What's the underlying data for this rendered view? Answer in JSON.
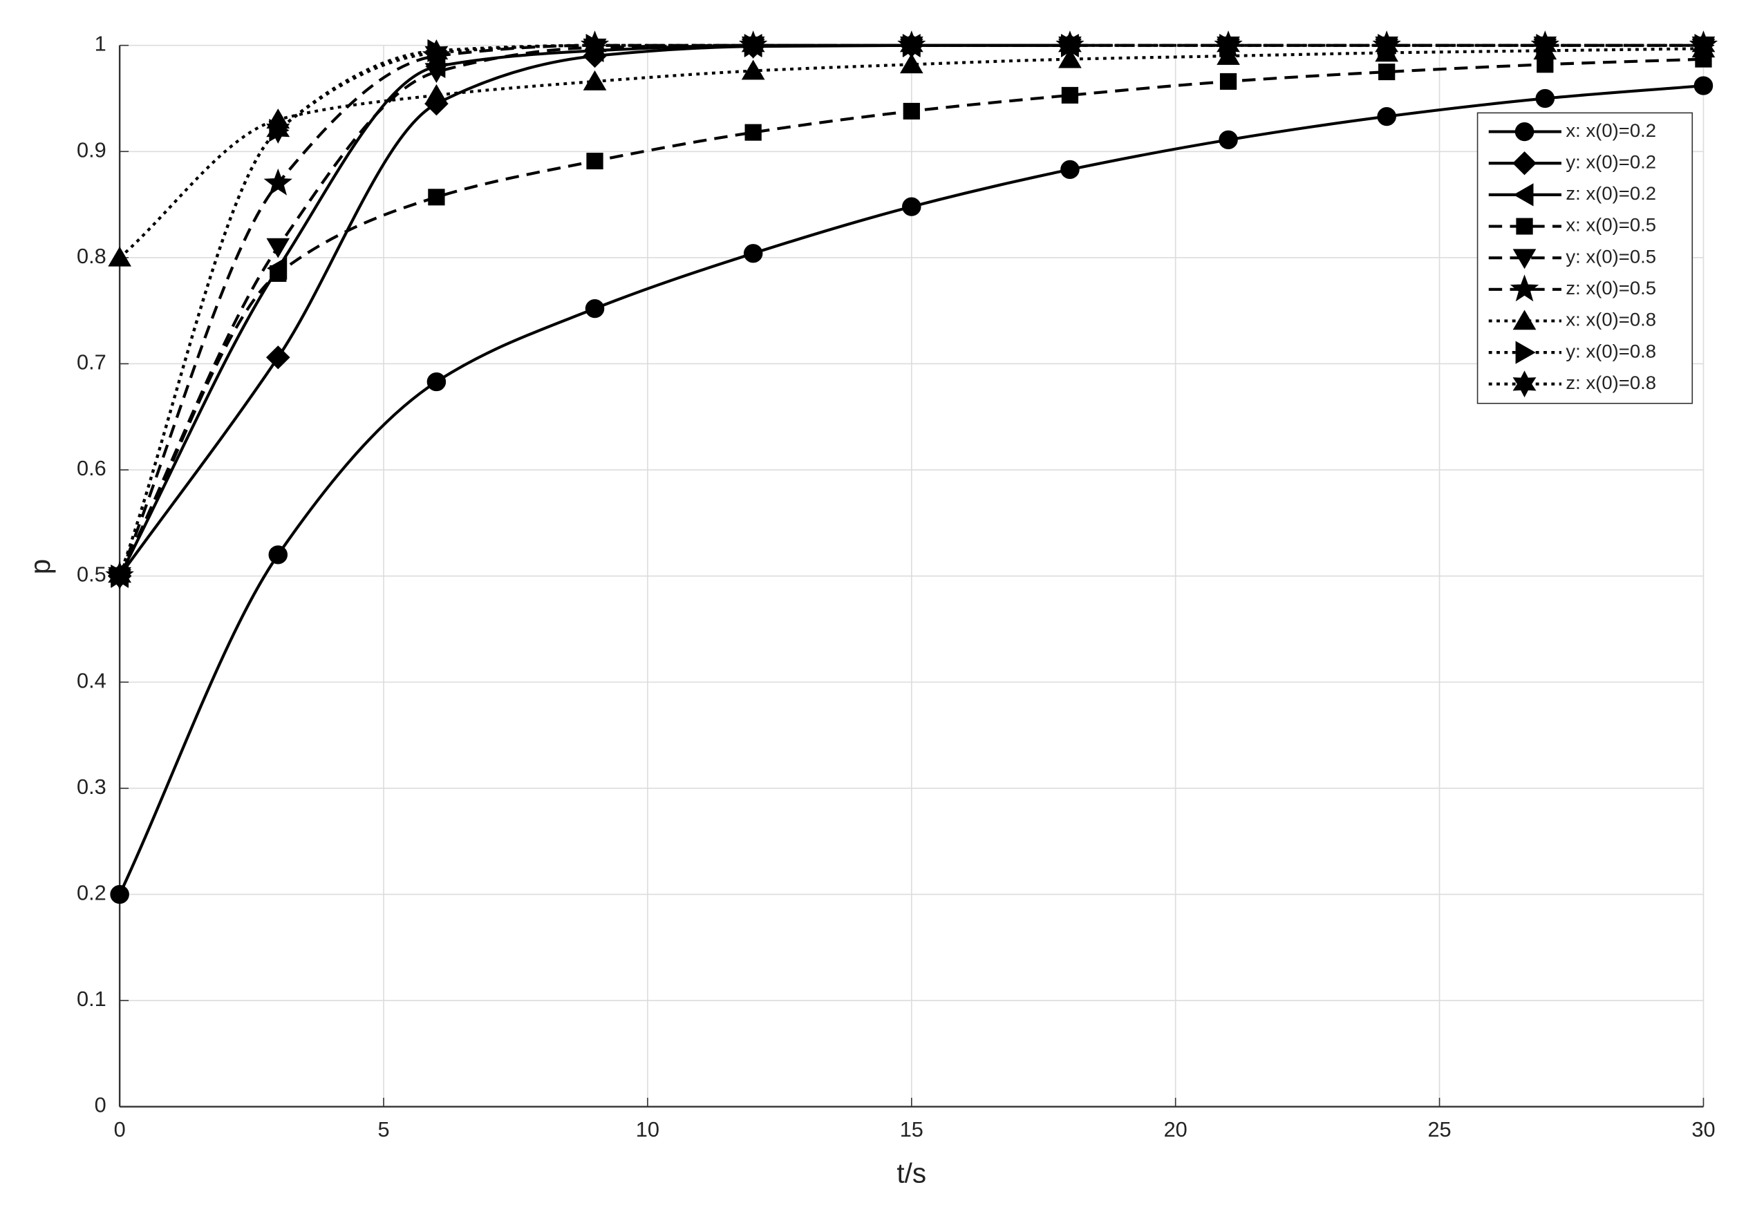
{
  "chart_data": {
    "type": "line",
    "x_label": "t/s",
    "y_label": "p",
    "x": [
      0,
      3,
      6,
      9,
      12,
      15,
      18,
      21,
      24,
      27,
      30
    ],
    "xlim": [
      0,
      30
    ],
    "xticks": [
      0,
      5,
      10,
      15,
      20,
      25,
      30
    ],
    "ylim": [
      0,
      1
    ],
    "yticks": [
      0,
      0.1,
      0.2,
      0.3,
      0.4,
      0.5,
      0.6,
      0.7,
      0.8,
      0.9,
      1
    ],
    "grid": true,
    "legend": "upper right",
    "series": [
      {
        "name": "x: x(0)=0.2",
        "color": "#000000",
        "dash": "solid",
        "marker": "circle",
        "values": [
          0.2,
          0.52,
          0.683,
          0.752,
          0.804,
          0.848,
          0.883,
          0.911,
          0.933,
          0.95,
          0.962
        ]
      },
      {
        "name": "y: x(0)=0.2",
        "color": "#000000",
        "dash": "solid",
        "marker": "diamond",
        "values": [
          0.5,
          0.706,
          0.945,
          0.99,
          0.999,
          1.0,
          1.0,
          null,
          null,
          null,
          null
        ]
      },
      {
        "name": "z: x(0)=0.2",
        "color": "#000000",
        "dash": "solid",
        "marker": "triangle-left",
        "values": [
          0.5,
          0.79,
          0.98,
          0.995,
          1.0,
          1.0,
          1.0,
          null,
          null,
          null,
          null
        ]
      },
      {
        "name": "x: x(0)=0.5",
        "color": "#000000",
        "dash": "dashed",
        "marker": "square",
        "values": [
          0.5,
          0.785,
          0.857,
          0.891,
          0.918,
          0.938,
          0.953,
          0.966,
          0.975,
          0.982,
          0.987
        ]
      },
      {
        "name": "y: x(0)=0.5",
        "color": "#000000",
        "dash": "dashed",
        "marker": "triangle-down",
        "values": [
          0.5,
          0.81,
          0.975,
          0.998,
          1.0,
          1.0,
          1.0,
          1.0,
          1.0,
          1.0,
          1.0
        ]
      },
      {
        "name": "z: x(0)=0.5",
        "color": "#000000",
        "dash": "dashed",
        "marker": "star",
        "values": [
          0.5,
          0.87,
          0.99,
          1.0,
          1.0,
          1.0,
          1.0,
          1.0,
          1.0,
          1.0,
          1.0
        ]
      },
      {
        "name": "x: x(0)=0.8",
        "color": "#000000",
        "dash": "dotted",
        "marker": "triangle-up",
        "values": [
          0.8,
          0.93,
          0.953,
          0.966,
          0.976,
          0.982,
          0.987,
          0.99,
          0.993,
          0.995,
          0.997
        ]
      },
      {
        "name": "y: x(0)=0.8",
        "color": "#000000",
        "dash": "dotted",
        "marker": "triangle-right",
        "values": [
          0.5,
          0.92,
          0.995,
          1.0,
          1.0,
          1.0,
          1.0,
          1.0,
          1.0,
          1.0,
          1.0
        ]
      },
      {
        "name": "z: x(0)=0.8",
        "color": "#000000",
        "dash": "dotted",
        "marker": "hexagram",
        "values": [
          0.5,
          0.92,
          0.993,
          1.0,
          1.0,
          1.0,
          1.0,
          1.0,
          1.0,
          1.0,
          1.0
        ]
      }
    ]
  }
}
